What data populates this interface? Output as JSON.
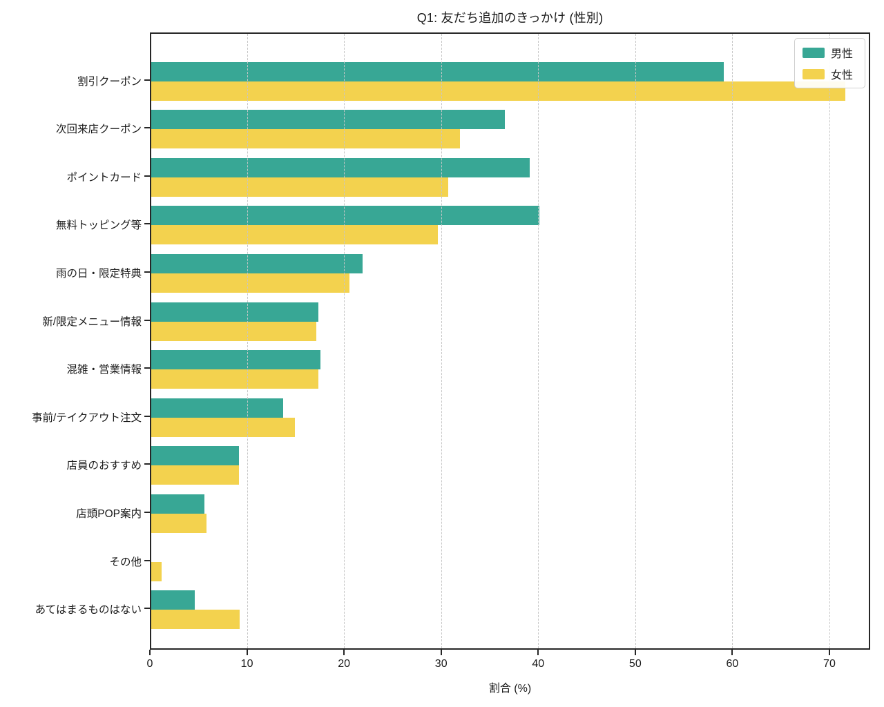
{
  "chart_data": {
    "type": "bar",
    "orientation": "horizontal",
    "title": "Q1: 友だち追加のきっかけ (性別)",
    "xlabel": "割合 (%)",
    "ylabel": "",
    "xlim": [
      0,
      74.2
    ],
    "xticks": [
      0,
      10,
      20,
      30,
      40,
      50,
      60,
      70
    ],
    "grid": "vertical-dashed-over-bars",
    "legend_position": "upper-right",
    "categories": [
      "割引クーポン",
      "次回来店クーポン",
      "ポイントカード",
      "無料トッピング等",
      "雨の日・限定特典",
      "新/限定メニュー情報",
      "混雑・営業情報",
      "事前/テイクアウト注文",
      "店員のおすすめ",
      "店頭POP案内",
      "その他",
      "あてはまるものはない"
    ],
    "series": [
      {
        "name": "男性",
        "color": "#38a795",
        "values": [
          59.0,
          36.4,
          39.0,
          40.0,
          21.8,
          17.2,
          17.4,
          13.6,
          9.0,
          5.5,
          0.0,
          4.5
        ]
      },
      {
        "name": "女性",
        "color": "#f3d24e",
        "values": [
          71.5,
          31.8,
          30.6,
          29.5,
          20.4,
          17.0,
          17.2,
          14.8,
          9.0,
          5.7,
          1.1,
          9.1
        ]
      }
    ],
    "colors": {
      "spine": "#262626",
      "gridline": "#c6c6c6",
      "background": "#ffffff",
      "text": "#1a1a1a"
    }
  }
}
